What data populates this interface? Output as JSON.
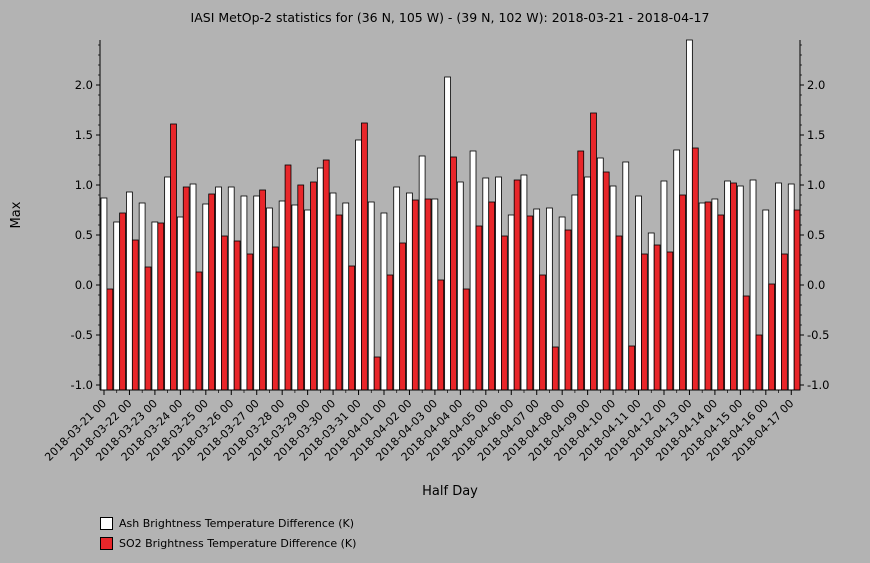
{
  "chart_data": {
    "type": "bar",
    "title": "IASI MetOp-2 statistics for (36 N, 105 W) - (39 N, 102 W): 2018-03-21 - 2018-04-17",
    "xlabel": "Half Day",
    "ylabel": "Max",
    "ylim": [
      -1.05,
      2.45
    ],
    "yticks": [
      -1.0,
      -0.5,
      0.0,
      0.5,
      1.0,
      1.5,
      2.0
    ],
    "ytick_labels": [
      "-1.0",
      "-0.5",
      "0.0",
      "0.5",
      "1.0",
      "1.5",
      "2.0"
    ],
    "grid": false,
    "legend_position": "bottom-left",
    "tick_labels": [
      "2018-03-21 00",
      "2018-03-22 00",
      "2018-03-23 00",
      "2018-03-24 00",
      "2018-03-25 00",
      "2018-03-26 00",
      "2018-03-27 00",
      "2018-03-28 00",
      "2018-03-29 00",
      "2018-03-30 00",
      "2018-03-31 00",
      "2018-04-01 00",
      "2018-04-02 00",
      "2018-04-03 00",
      "2018-04-04 00",
      "2018-04-05 00",
      "2018-04-06 00",
      "2018-04-07 00",
      "2018-04-08 00",
      "2018-04-09 00",
      "2018-04-10 00",
      "2018-04-11 00",
      "2018-04-12 00",
      "2018-04-13 00",
      "2018-04-14 00",
      "2018-04-15 00",
      "2018-04-16 00",
      "2018-04-17 00"
    ],
    "series": [
      {
        "name": "Ash Brightness Temperature Difference (K)",
        "color": "#ffffff",
        "values": [
          0.87,
          0.63,
          0.93,
          0.82,
          0.63,
          1.08,
          0.68,
          1.01,
          0.81,
          0.98,
          0.98,
          0.89,
          0.89,
          0.77,
          0.84,
          0.8,
          0.75,
          1.17,
          0.92,
          0.82,
          1.45,
          0.83,
          0.72,
          0.98,
          0.92,
          1.29,
          0.86,
          2.08,
          1.03,
          1.34,
          1.07,
          1.08,
          0.7,
          1.1,
          0.76,
          0.77,
          0.68,
          0.9,
          1.08,
          1.27,
          0.99,
          1.23,
          0.89,
          0.52,
          1.04,
          1.35,
          2.45,
          0.82,
          0.86,
          1.04,
          0.99,
          1.05,
          0.75,
          1.02,
          1.01
        ]
      },
      {
        "name": "SO2 Brightness Temperature Difference (K)",
        "color": "#e8262a",
        "values": [
          -0.04,
          0.72,
          0.45,
          0.18,
          0.62,
          1.61,
          0.98,
          0.13,
          0.91,
          0.49,
          0.44,
          0.31,
          0.95,
          0.38,
          1.2,
          1.0,
          1.03,
          1.25,
          0.7,
          0.19,
          1.62,
          -0.72,
          0.1,
          0.42,
          0.85,
          0.86,
          0.05,
          1.28,
          -0.04,
          0.59,
          0.83,
          0.49,
          1.05,
          0.69,
          0.1,
          -0.62,
          0.55,
          1.34,
          1.72,
          1.13,
          0.49,
          -0.61,
          0.31,
          0.4,
          0.33,
          0.9,
          1.37,
          0.83,
          0.7,
          1.02,
          -0.11,
          -0.5,
          0.01,
          0.31,
          0.75
        ]
      }
    ]
  }
}
